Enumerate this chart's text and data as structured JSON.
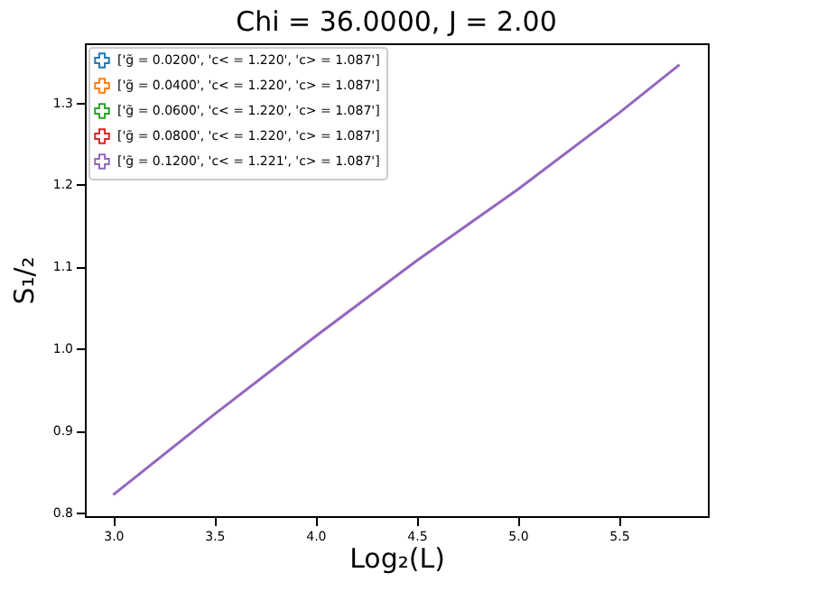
{
  "chart_data": {
    "type": "line",
    "title": "Chi = 36.0000, J = 2.00",
    "xlabel": "Log₂(L)",
    "ylabel": "S₁/₂",
    "x": [
      3.0,
      3.5,
      4.0,
      4.5,
      5.0,
      5.5,
      5.8
    ],
    "series": [
      {
        "name": "['g̃ = 0.0200', 'c< = 1.220', 'c> = 1.087']",
        "color": "#1f77b4",
        "values": [
          null,
          null,
          null,
          null,
          null,
          null,
          null
        ]
      },
      {
        "name": "['g̃ = 0.0400', 'c< = 1.220', 'c> = 1.087']",
        "color": "#ff7f0e",
        "values": [
          null,
          null,
          null,
          null,
          null,
          null,
          null
        ]
      },
      {
        "name": "['g̃ = 0.0600', 'c< = 1.220', 'c> = 1.087']",
        "color": "#2ca02c",
        "values": [
          null,
          null,
          null,
          null,
          null,
          null,
          null
        ]
      },
      {
        "name": "['g̃ = 0.0800', 'c< = 1.220', 'c> = 1.087']",
        "color": "#d62728",
        "values": [
          null,
          null,
          null,
          null,
          null,
          null,
          null
        ]
      },
      {
        "name": "['g̃ = 0.1200', 'c< = 1.221', 'c> = 1.087']",
        "color": "#9467bd",
        "values": [
          0.822,
          0.92,
          1.015,
          1.107,
          1.194,
          1.287,
          1.346
        ]
      }
    ],
    "xlim": [
      2.86,
      5.94
    ],
    "xticks": [
      {
        "value": 3,
        "label": "3.0"
      },
      3.5,
      {
        "value": 4,
        "label": "4.0"
      },
      4.5,
      {
        "value": 5,
        "label": "5.0"
      },
      5.5
    ],
    "ylim": [
      0.796,
      1.372
    ],
    "yticks": [
      0.8,
      0.9,
      {
        "value": 1,
        "label": "1.0"
      },
      1.1,
      1.2,
      1.3
    ],
    "grid": false,
    "legend": "top left",
    "marker": "none",
    "line_style": "solid"
  }
}
